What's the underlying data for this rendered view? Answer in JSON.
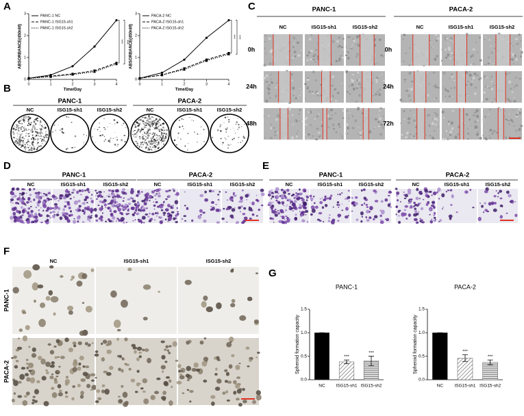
{
  "panel_labels": [
    "A",
    "B",
    "C",
    "D",
    "E",
    "F",
    "G"
  ],
  "chart_data": [
    {
      "type": "line",
      "xlabel": "Time/Day",
      "ylabel": "ABSORBANCE(450nM)",
      "x": [
        0,
        1,
        2,
        3,
        4
      ],
      "xlim": [
        0,
        4
      ],
      "xticks": [
        0,
        1,
        2,
        3,
        4
      ],
      "ylim": [
        0,
        3
      ],
      "yticks": [
        0,
        1,
        2,
        3
      ],
      "legend": "top-left",
      "series": [
        {
          "name": "PANC-1 NC",
          "color": "#000000",
          "style": "solid",
          "marker": "circle",
          "values": [
            0.05,
            0.2,
            0.6,
            1.5,
            2.7
          ]
        },
        {
          "name": "PANC-1 ISG15-sh1",
          "color": "#000000",
          "style": "dashed",
          "marker": "square",
          "values": [
            0.05,
            0.15,
            0.25,
            0.4,
            0.75
          ]
        },
        {
          "name": "PANC-1 ISG15-sh2",
          "color": "#000000",
          "style": "dotted",
          "marker": "triangle",
          "values": [
            0.05,
            0.12,
            0.22,
            0.35,
            0.7
          ]
        }
      ],
      "annotations": [
        "***",
        "***"
      ]
    },
    {
      "type": "line",
      "xlabel": "Time/Day",
      "ylabel": "ABSORBANCE(450nM)",
      "x": [
        0,
        1,
        2,
        3,
        4
      ],
      "xlim": [
        0,
        4
      ],
      "xticks": [
        0,
        1,
        2,
        3,
        4
      ],
      "ylim": [
        0,
        3
      ],
      "yticks": [
        0,
        1,
        2,
        3
      ],
      "legend": "top-left",
      "series": [
        {
          "name": "PACA-2 NC",
          "color": "#000000",
          "style": "solid",
          "marker": "circle",
          "values": [
            0.05,
            0.3,
            0.9,
            1.9,
            2.7
          ]
        },
        {
          "name": "PACA-2 ISG15-sh1",
          "color": "#000000",
          "style": "dashed",
          "marker": "square",
          "values": [
            0.05,
            0.2,
            0.5,
            0.9,
            1.2
          ]
        },
        {
          "name": "PACA-2 ISG15-sh2",
          "color": "#000000",
          "style": "dotted",
          "marker": "triangle",
          "values": [
            0.05,
            0.2,
            0.45,
            0.85,
            1.15
          ]
        }
      ],
      "annotations": [
        "***",
        "***"
      ]
    },
    {
      "type": "bar",
      "title": "PANC-1",
      "ylabel": "Spheroid formation capacity",
      "categories": [
        "NC",
        "ISG15-sh1",
        "ISG15-sh2"
      ],
      "values": [
        1.0,
        0.38,
        0.4
      ],
      "errors": [
        0,
        0.04,
        0.1
      ],
      "color": "#000000",
      "patterns": [
        "solid",
        "diagonal",
        "horizontal"
      ],
      "ylim": [
        0,
        1.5
      ],
      "yticks": [
        {
          "value": 0,
          "label": "0.0"
        },
        {
          "value": 0.5,
          "label": "0.5"
        },
        {
          "value": 1,
          "label": "1.0"
        },
        {
          "value": 1.5,
          "label": "1.5"
        }
      ],
      "annotations": [
        "***",
        "***"
      ]
    },
    {
      "type": "bar",
      "title": "PACA-2",
      "ylabel": "Spheroid formation capacity",
      "categories": [
        "NC",
        "ISG15-sh1",
        "ISG15-sh2"
      ],
      "values": [
        1.0,
        0.46,
        0.37
      ],
      "errors": [
        0,
        0.07,
        0.05
      ],
      "color": "#000000",
      "patterns": [
        "solid",
        "diagonal",
        "horizontal"
      ],
      "ylim": [
        0,
        1.5
      ],
      "yticks": [
        {
          "value": 0,
          "label": "0.0"
        },
        {
          "value": 0.5,
          "label": "0.5"
        },
        {
          "value": 1,
          "label": "1.0"
        },
        {
          "value": 1.5,
          "label": "1.5"
        }
      ],
      "annotations": [
        "***",
        "***"
      ]
    }
  ],
  "colony_panel": {
    "groups": [
      {
        "name": "PANC-1",
        "columns": [
          "NC",
          "ISG15-sh1",
          "ISG15-sh2"
        ]
      },
      {
        "name": "PACA-2",
        "columns": [
          "NC",
          "ISG15-sh1",
          "ISG15-sh2"
        ]
      }
    ]
  },
  "wound_panel": {
    "groups": [
      {
        "name": "PANC-1",
        "columns": [
          "NC",
          "ISG15-sh1",
          "ISG15-sh2"
        ],
        "rows": [
          "0h",
          "24h",
          "48h"
        ]
      },
      {
        "name": "PACA-2",
        "columns": [
          "NC",
          "ISG15-sh1",
          "ISG15-sh2"
        ],
        "rows": [
          "0h",
          "24h",
          "72h"
        ]
      }
    ]
  },
  "invasion_panel": {
    "groups": [
      {
        "name": "PANC-1",
        "columns": [
          "NC",
          "ISG15-sh1",
          "ISG15-sh2"
        ]
      },
      {
        "name": "PACA-2",
        "columns": [
          "NC",
          "ISG15-sh1",
          "ISG15-sh2"
        ]
      }
    ]
  },
  "migration_panel": {
    "groups": [
      {
        "name": "PANC-1",
        "columns": [
          "NC",
          "ISG15-sh1",
          "ISG15-sh2"
        ]
      },
      {
        "name": "PACA-2",
        "columns": [
          "NC",
          "ISG15-sh1",
          "ISG15-sh2"
        ]
      }
    ]
  },
  "spheroid_panel": {
    "columns": [
      "NC",
      "ISG15-sh1",
      "ISG15-sh2"
    ],
    "rows": [
      "PANC-1",
      "PACA-2"
    ]
  }
}
